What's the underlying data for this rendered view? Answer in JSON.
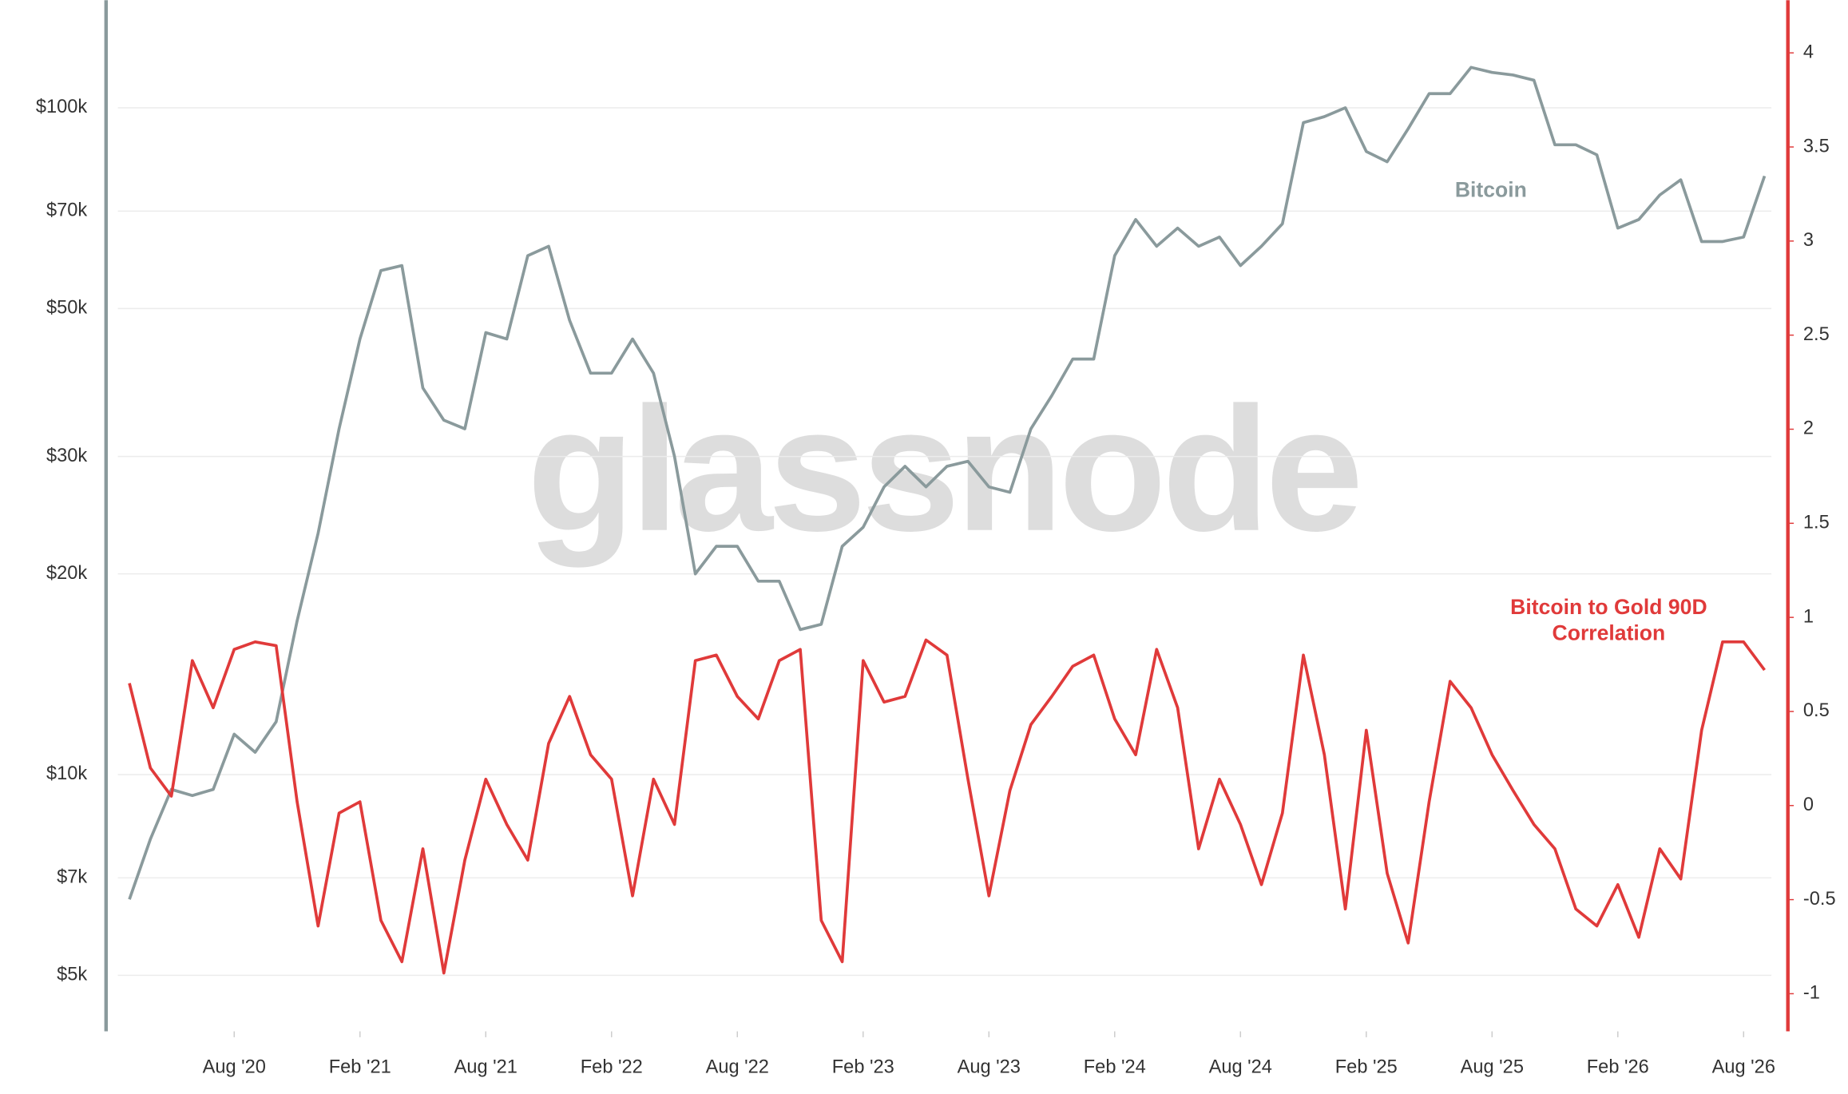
{
  "chart_data": {
    "type": "line",
    "watermark": "glassnode",
    "x": [
      "2020-03",
      "2020-04",
      "2020-05",
      "2020-06",
      "2020-07",
      "2020-08",
      "2020-09",
      "2020-10",
      "2020-11",
      "2020-12",
      "2021-01",
      "2021-02",
      "2021-03",
      "2021-04",
      "2021-05",
      "2021-06",
      "2021-07",
      "2021-08",
      "2021-09",
      "2021-10",
      "2021-11",
      "2021-12",
      "2022-01",
      "2022-02",
      "2022-03",
      "2022-04",
      "2022-05",
      "2022-06",
      "2022-07",
      "2022-08",
      "2022-09",
      "2022-10",
      "2022-11",
      "2022-12",
      "2023-01",
      "2023-02",
      "2023-03",
      "2023-04",
      "2023-05",
      "2023-06",
      "2023-07",
      "2023-08",
      "2023-09",
      "2023-10",
      "2023-11",
      "2023-12",
      "2024-01",
      "2024-02",
      "2024-03",
      "2024-04",
      "2024-05",
      "2024-06",
      "2024-07",
      "2024-08",
      "2024-09",
      "2024-10",
      "2024-11",
      "2024-12",
      "2025-01",
      "2025-02",
      "2025-03",
      "2025-04",
      "2025-05",
      "2025-06",
      "2025-07",
      "2025-08",
      "2025-09",
      "2025-10",
      "2025-11",
      "2025-12",
      "2026-01",
      "2026-02",
      "2026-03",
      "2026-04",
      "2026-05",
      "2026-06",
      "2026-07",
      "2026-08",
      "2026-09"
    ],
    "xlim": [
      "2020-02",
      "2026-10"
    ],
    "xticks": [
      {
        "value": "2020-08",
        "label": "Aug '20"
      },
      {
        "value": "2021-02",
        "label": "Feb '21"
      },
      {
        "value": "2021-08",
        "label": "Aug '21"
      },
      {
        "value": "2022-02",
        "label": "Feb '22"
      },
      {
        "value": "2022-08",
        "label": "Aug '22"
      },
      {
        "value": "2023-02",
        "label": "Feb '23"
      },
      {
        "value": "2023-08",
        "label": "Aug '23"
      },
      {
        "value": "2024-02",
        "label": "Feb '24"
      },
      {
        "value": "2024-08",
        "label": "Aug '24"
      },
      {
        "value": "2025-02",
        "label": "Feb '25"
      },
      {
        "value": "2025-08",
        "label": "Aug '25"
      },
      {
        "value": "2026-02",
        "label": "Feb '26"
      },
      {
        "value": "2026-08",
        "label": "Aug '26"
      }
    ],
    "ylog": true,
    "ylim": [
      4120,
      145000
    ],
    "yticks": [
      {
        "value": 5000,
        "label": "$5k"
      },
      {
        "value": 7000,
        "label": "$7k"
      },
      {
        "value": 10000,
        "label": "$10k"
      },
      {
        "value": 20000,
        "label": "$20k"
      },
      {
        "value": 30000,
        "label": "$30k"
      },
      {
        "value": 50000,
        "label": "$50k"
      },
      {
        "value": 70000,
        "label": "$70k"
      },
      {
        "value": 100000,
        "label": "$100k"
      }
    ],
    "y2lim": [
      -1.2,
      4.28
    ],
    "y2ticks": [
      -1,
      -0.5,
      0,
      0.5,
      1,
      1.5,
      2,
      2.5,
      3,
      3.5,
      4
    ],
    "grid": true,
    "series": [
      {
        "name": "Bitcoin",
        "color": "#8a9a9c",
        "values": [
          6500,
          8000,
          9500,
          9300,
          9500,
          11500,
          10800,
          12000,
          17000,
          23000,
          33000,
          45000,
          57000,
          58000,
          38000,
          34000,
          33000,
          46000,
          45000,
          60000,
          62000,
          48000,
          40000,
          40000,
          45000,
          40000,
          30000,
          20000,
          22000,
          22000,
          19500,
          19500,
          16500,
          16800,
          22000,
          23500,
          27000,
          29000,
          27000,
          29000,
          29500,
          27000,
          26500,
          33000,
          37000,
          42000,
          42000,
          60000,
          68000,
          62000,
          66000,
          62000,
          64000,
          58000,
          62000,
          67000,
          95000,
          97000,
          100000,
          86000,
          83000,
          93000,
          105000,
          105000,
          115000,
          113000,
          112000,
          110000,
          88000,
          88000,
          85000,
          66000,
          68000,
          74000,
          78000,
          63000,
          63000,
          64000,
          79000
        ]
      },
      {
        "name": "Bitcoin to Gold 90D Correlation",
        "color": "#e03a3a",
        "axis": "y2",
        "values": [
          0.65,
          0.2,
          0.05,
          0.77,
          0.52,
          0.83,
          0.87,
          0.85,
          0.02,
          -0.64,
          -0.04,
          0.02,
          -0.61,
          -0.83,
          -0.23,
          -0.89,
          -0.29,
          0.14,
          -0.1,
          -0.29,
          0.33,
          0.58,
          0.27,
          0.14,
          -0.48,
          0.14,
          -0.1,
          0.77,
          0.8,
          0.58,
          0.46,
          0.77,
          0.83,
          -0.61,
          -0.83,
          0.77,
          0.55,
          0.58,
          0.88,
          0.8,
          0.14,
          -0.48,
          0.08,
          0.43,
          0.58,
          0.74,
          0.8,
          0.46,
          0.27,
          0.83,
          0.52,
          -0.23,
          0.14,
          -0.1,
          -0.42,
          -0.04,
          0.8,
          0.27,
          -0.55,
          0.4,
          -0.36,
          -0.73,
          0.02,
          0.66,
          0.52,
          0.27,
          0.08,
          -0.1,
          -0.23,
          -0.55,
          -0.64,
          -0.42,
          -0.7,
          -0.23,
          -0.39,
          0.4,
          0.87,
          0.87,
          0.72
        ]
      }
    ]
  }
}
